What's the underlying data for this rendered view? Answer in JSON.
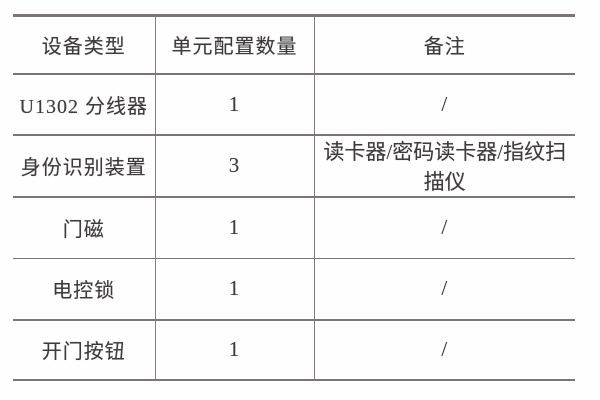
{
  "colors": {
    "line": "#7b7577",
    "text": "#3e3a3b",
    "background": "#fefefe"
  },
  "table": {
    "columns": [
      {
        "label": "设备类型"
      },
      {
        "label": "单元配置数量"
      },
      {
        "label": "备注"
      }
    ],
    "rows": [
      {
        "device": "U1302 分线器",
        "qty": "1",
        "remark": "/"
      },
      {
        "device": "身份识别装置",
        "qty": "3",
        "remark": "读卡器/密码读卡器/指纹扫描仪"
      },
      {
        "device": "门磁",
        "qty": "1",
        "remark": "/"
      },
      {
        "device": "电控锁",
        "qty": "1",
        "remark": "/"
      },
      {
        "device": "开门按钮",
        "qty": "1",
        "remark": "/"
      }
    ]
  }
}
